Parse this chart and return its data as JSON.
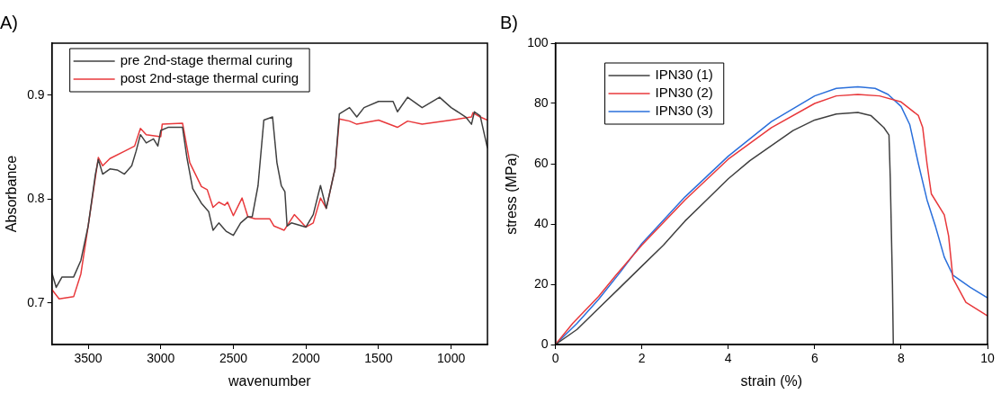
{
  "chart_data": [
    {
      "type": "line",
      "title": "A)",
      "xlabel": "wavenumber",
      "ylabel": "Absorbance",
      "xlim": [
        3750,
        750
      ],
      "xticks": [
        3500,
        3000,
        2500,
        2000,
        1500,
        1000
      ],
      "ylim": [
        0.66,
        0.95
      ],
      "yticks": [
        0.7,
        0.8,
        0.9
      ],
      "grid": false,
      "legend": "top left",
      "marker": "none",
      "line_style": "solid",
      "series": [
        {
          "name": "pre 2nd-stage thermal curing",
          "color": "#404040",
          "x": [
            3750,
            3720,
            3680,
            3600,
            3550,
            3500,
            3450,
            3430,
            3400,
            3350,
            3300,
            3250,
            3200,
            3170,
            3140,
            3100,
            3050,
            3020,
            3000,
            2950,
            2850,
            2820,
            2780,
            2720,
            2670,
            2640,
            2600,
            2550,
            2500,
            2450,
            2400,
            2370,
            2330,
            2290,
            2230,
            2200,
            2170,
            2145,
            2130,
            2100,
            2000,
            1950,
            1900,
            1860,
            1800,
            1770,
            1700,
            1650,
            1600,
            1500,
            1400,
            1370,
            1300,
            1200,
            1080,
            1000,
            900,
            860,
            840,
            800,
            750
          ],
          "values": [
            0.729,
            0.715,
            0.725,
            0.725,
            0.741,
            0.774,
            0.824,
            0.838,
            0.824,
            0.829,
            0.828,
            0.824,
            0.832,
            0.846,
            0.862,
            0.854,
            0.858,
            0.851,
            0.866,
            0.869,
            0.869,
            0.84,
            0.81,
            0.796,
            0.788,
            0.77,
            0.777,
            0.769,
            0.765,
            0.777,
            0.783,
            0.783,
            0.813,
            0.876,
            0.879,
            0.835,
            0.813,
            0.807,
            0.774,
            0.777,
            0.773,
            0.785,
            0.813,
            0.791,
            0.829,
            0.882,
            0.888,
            0.879,
            0.888,
            0.894,
            0.894,
            0.884,
            0.898,
            0.888,
            0.898,
            0.888,
            0.879,
            0.872,
            0.884,
            0.88,
            0.849
          ]
        },
        {
          "name": "post 2nd-stage thermal curing",
          "color": "#e8383b",
          "x": [
            3750,
            3700,
            3600,
            3550,
            3500,
            3430,
            3400,
            3350,
            3250,
            3180,
            3140,
            3100,
            3000,
            2990,
            2850,
            2800,
            2720,
            2680,
            2640,
            2600,
            2560,
            2540,
            2500,
            2440,
            2400,
            2350,
            2250,
            2220,
            2150,
            2080,
            2000,
            1950,
            1900,
            1860,
            1800,
            1770,
            1700,
            1650,
            1500,
            1370,
            1300,
            1200,
            1000,
            860,
            850,
            800,
            750
          ],
          "values": [
            0.713,
            0.704,
            0.706,
            0.728,
            0.774,
            0.84,
            0.832,
            0.839,
            0.846,
            0.851,
            0.868,
            0.862,
            0.86,
            0.872,
            0.873,
            0.835,
            0.812,
            0.809,
            0.792,
            0.797,
            0.794,
            0.797,
            0.784,
            0.801,
            0.783,
            0.781,
            0.781,
            0.774,
            0.77,
            0.785,
            0.773,
            0.777,
            0.801,
            0.791,
            0.829,
            0.877,
            0.875,
            0.872,
            0.876,
            0.869,
            0.875,
            0.872,
            0.876,
            0.879,
            0.883,
            0.879,
            0.876
          ]
        }
      ]
    },
    {
      "type": "line",
      "title": "B)",
      "xlabel": "strain (%)",
      "ylabel": "stress (MPa)",
      "xlim": [
        0,
        10
      ],
      "xticks": [
        0,
        2,
        4,
        6,
        8,
        10
      ],
      "ylim": [
        0,
        100
      ],
      "yticks": [
        0,
        20,
        40,
        60,
        80,
        100
      ],
      "grid": false,
      "legend": "top left",
      "marker": "none",
      "line_style": "solid",
      "series": [
        {
          "name": "IPN30 (1)",
          "color": "#404040",
          "x": [
            0,
            0.5,
            1,
            1.5,
            2,
            2.5,
            3,
            3.5,
            4,
            4.5,
            5,
            5.5,
            6,
            6.5,
            7,
            7.3,
            7.6,
            7.72,
            7.75,
            7.8,
            7.82
          ],
          "values": [
            0,
            5,
            12,
            19,
            26,
            33,
            41,
            48,
            55,
            61,
            66,
            71,
            74.5,
            76.5,
            77,
            76,
            72,
            69.5,
            55,
            20,
            0
          ]
        },
        {
          "name": "IPN30 (2)",
          "color": "#e8383b",
          "x": [
            0,
            0.4,
            1,
            1.4,
            2,
            3,
            4,
            5,
            6,
            6.5,
            7,
            7.5,
            8,
            8.4,
            8.5,
            8.6,
            8.7,
            9,
            9.1,
            9.2,
            9.5,
            10
          ],
          "values": [
            0,
            7,
            16,
            23,
            33,
            48,
            61.5,
            72,
            80,
            82.5,
            83,
            82.5,
            80.5,
            76,
            72,
            60,
            50,
            43,
            36,
            22,
            14,
            9.5
          ]
        },
        {
          "name": "IPN30 (3)",
          "color": "#2a6fdb",
          "x": [
            0,
            0.5,
            1,
            1.5,
            2,
            3,
            4,
            5,
            6,
            6.5,
            7,
            7.4,
            7.7,
            8,
            8.2,
            8.4,
            8.6,
            8.8,
            9,
            9.2,
            9.6,
            10
          ],
          "values": [
            0,
            7,
            15,
            24,
            33.5,
            49,
            62.5,
            74,
            82.5,
            85,
            85.5,
            85,
            83,
            79,
            73,
            60,
            48,
            39,
            29,
            23,
            19,
            15.5
          ]
        }
      ]
    }
  ]
}
